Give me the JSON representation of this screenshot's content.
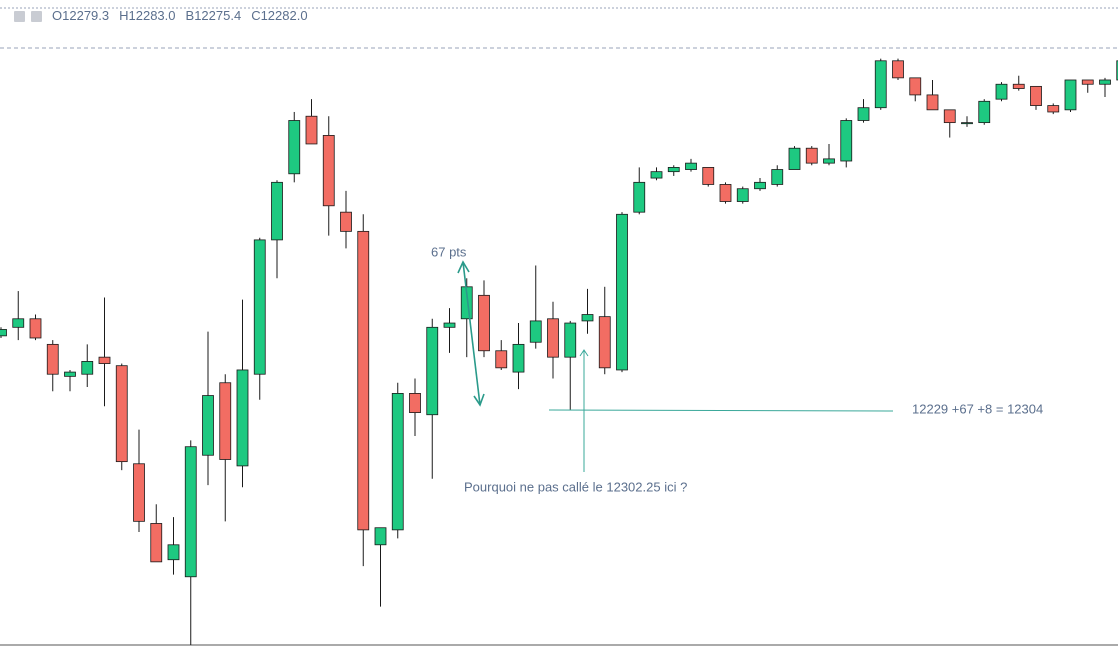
{
  "chart_data": {
    "type": "candlestick",
    "header": {
      "open_label": "O",
      "open": "12279.3",
      "high_label": "H",
      "high": "12283.0",
      "low_label": "B",
      "low": "12275.4",
      "close_label": "C",
      "close": "12282.0"
    },
    "annotations": {
      "range": "67 pts",
      "sum": "12229 +67 +8 = 12304",
      "question": "Pourquoi ne pas callé le 12302.25 ici ?"
    },
    "up_color": "#1ec981",
    "down_color": "#f26d63",
    "ylim": [
      12119,
      12399
    ],
    "open": [
      12264,
      12268,
      12272,
      12260,
      12245,
      12246,
      12254,
      12250,
      12204,
      12176,
      12159,
      12151,
      12208,
      12242,
      12203,
      12246,
      12309,
      12340,
      12367,
      12358,
      12322,
      12313,
      12166,
      12173,
      12237,
      12227,
      12268,
      12272,
      12283,
      12257,
      12247,
      12261,
      12272,
      12254,
      12271,
      12273,
      12248,
      12322,
      12338,
      12341,
      12342,
      12343,
      12335,
      12327,
      12333,
      12335,
      12342,
      12352,
      12345,
      12346,
      12365,
      12371,
      12393,
      12385,
      12377,
      12370,
      12363.5,
      12364,
      12375,
      12382,
      12381,
      12372,
      12370,
      12384,
      12382,
      12384
    ],
    "high": [
      12268,
      12285,
      12274,
      12262,
      12248,
      12260,
      12282,
      12251,
      12220,
      12185,
      12179,
      12215,
      12266,
      12246,
      12281,
      12310,
      12337,
      12369,
      12375,
      12367,
      12332,
      12321,
      12174,
      12242,
      12244,
      12272,
      12277,
      12291,
      12290,
      12262,
      12270,
      12297,
      12280,
      12271,
      12286,
      12287,
      12322,
      12343,
      12343,
      12344,
      12347,
      12343,
      12336,
      12334,
      12338,
      12344,
      12353,
      12353,
      12354,
      12366,
      12375,
      12394,
      12394,
      12385,
      12384,
      12370,
      12367,
      12375,
      12383,
      12386,
      12381,
      12373,
      12384,
      12384,
      12385,
      12394
    ],
    "low": [
      12263,
      12262,
      12262,
      12238,
      12238,
      12240,
      12231,
      12201,
      12172,
      12158,
      12152,
      12119,
      12194,
      12177,
      12193,
      12234,
      12291,
      12336,
      12354,
      12311,
      12305,
      12156,
      12137,
      12169,
      12217,
      12197,
      12256,
      12254,
      12254,
      12248,
      12239,
      12258,
      12244,
      12229,
      12265,
      12246,
      12247,
      12321,
      12337,
      12339,
      12341,
      12334,
      12326,
      12326,
      12332,
      12334,
      12342,
      12344,
      12344,
      12343,
      12364,
      12370,
      12384,
      12374,
      12370,
      12357,
      12362,
      12363,
      12374,
      12379,
      12370,
      12368,
      12369,
      12378,
      12376,
      12383
    ],
    "close": [
      12267,
      12272,
      12263,
      12246,
      12247,
      12252,
      12251,
      12205,
      12177,
      12158,
      12166,
      12212,
      12236,
      12206,
      12248,
      12309,
      12336,
      12365,
      12354,
      12325,
      12313,
      12173,
      12174,
      12237,
      12228,
      12268,
      12270,
      12287,
      12257,
      12249,
      12260,
      12271,
      12254,
      12270,
      12274,
      12249,
      12321,
      12336,
      12341,
      12343,
      12345,
      12335,
      12327,
      12333,
      12336,
      12342,
      12352,
      12345,
      12347,
      12365,
      12371,
      12393,
      12385,
      12377,
      12370,
      12364,
      12364,
      12374,
      12382,
      12380,
      12372,
      12369,
      12384,
      12382,
      12384,
      12393
    ]
  }
}
